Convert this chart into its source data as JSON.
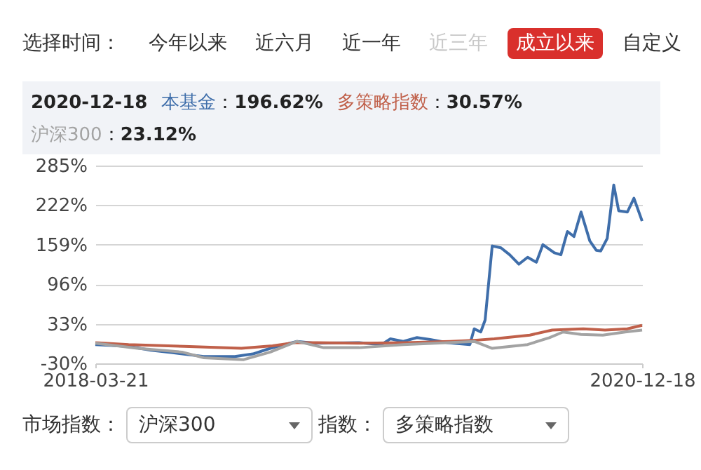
{
  "chart_data": {
    "type": "line",
    "annotations": [
      "选择时间：",
      "今年以来",
      "近六月",
      "近一年",
      "近三年",
      "成立以来",
      "自定义",
      "2020-12-18",
      "：196.62%",
      "：30.57%",
      "：23.12%",
      "市场指数：",
      "沪深300",
      "指数：",
      "多策略指数"
    ],
    "series": [
      {
        "name": "本基金",
        "color": "#3f6eaa",
        "x": [
          "2018-03-21",
          "2018-05-21",
          "2018-07-01",
          "2018-08-10",
          "2018-10-06",
          "2018-12-02",
          "2019-01-04",
          "2019-02-05",
          "2019-03-26",
          "2019-04-27",
          "2019-07-18",
          "2019-08-28",
          "2019-09-13",
          "2019-10-07",
          "2019-11-01",
          "2019-11-25",
          "2019-12-27",
          "2020-02-06",
          "2020-02-14",
          "2020-02-26",
          "2020-03-05",
          "2020-03-18",
          "2020-04-03",
          "2020-04-19",
          "2020-05-06",
          "2020-05-22",
          "2020-06-07",
          "2020-06-19",
          "2020-07-10",
          "2020-07-22",
          "2020-08-03",
          "2020-08-15",
          "2020-08-28",
          "2020-09-13",
          "2020-09-25",
          "2020-10-03",
          "2020-10-15",
          "2020-10-27",
          "2020-11-05",
          "2020-11-21",
          "2020-12-03",
          "2020-12-18"
        ],
        "values": [
          0,
          -3,
          -9,
          -13,
          -19,
          -19,
          -15,
          -6,
          5,
          2,
          3,
          0,
          9,
          5,
          11,
          8,
          3,
          0,
          25,
          20,
          39,
          157,
          154,
          143,
          128,
          139,
          131,
          159,
          146,
          143,
          180,
          172,
          211,
          165,
          150,
          149,
          169,
          254,
          213,
          211,
          233,
          196.62
        ]
      },
      {
        "name": "多策略指数",
        "color": "#c0604a",
        "x": [
          "2018-03-21",
          "2018-05-21",
          "2018-08-31",
          "2018-12-14",
          "2019-02-09",
          "2019-03-22",
          "2019-05-02",
          "2019-07-22",
          "2019-10-11",
          "2020-01-01",
          "2020-02-18",
          "2020-03-22",
          "2020-05-26",
          "2020-07-06",
          "2020-09-01",
          "2020-10-11",
          "2020-11-21",
          "2020-12-18"
        ],
        "values": [
          3,
          0,
          -3,
          -6,
          -2,
          3,
          3,
          2,
          3,
          5,
          7,
          9,
          15,
          23,
          25,
          23,
          25,
          30.57
        ]
      },
      {
        "name": "沪深300",
        "color": "#a3a3a3",
        "x": [
          "2018-03-21",
          "2018-06-06",
          "2018-08-27",
          "2018-10-06",
          "2018-12-18",
          "2019-02-05",
          "2019-03-26",
          "2019-05-14",
          "2019-07-18",
          "2019-10-07",
          "2019-12-27",
          "2020-02-14",
          "2020-03-18",
          "2020-05-22",
          "2020-07-01",
          "2020-07-26",
          "2020-08-28",
          "2020-10-07",
          "2020-11-17",
          "2020-12-18"
        ],
        "values": [
          2,
          -6,
          -12,
          -21,
          -24,
          -12,
          5,
          -5,
          -5,
          0,
          3,
          5,
          -6,
          0,
          11,
          20,
          16,
          15,
          20,
          23.12
        ]
      }
    ],
    "xlim": [
      "2018-03-21",
      "2020-12-18"
    ],
    "xticks": [
      "2018-03-21",
      "2020-12-18"
    ],
    "ylim": [
      -30,
      285
    ],
    "yticks": [
      {
        "value": -30,
        "label": "-30%"
      },
      {
        "value": 33,
        "label": "33%"
      },
      {
        "value": 96,
        "label": "96%"
      },
      {
        "value": 159,
        "label": "159%"
      },
      {
        "value": 222,
        "label": "222%"
      },
      {
        "value": 285,
        "label": "285%"
      }
    ],
    "grid": "y",
    "legend": "top"
  }
}
